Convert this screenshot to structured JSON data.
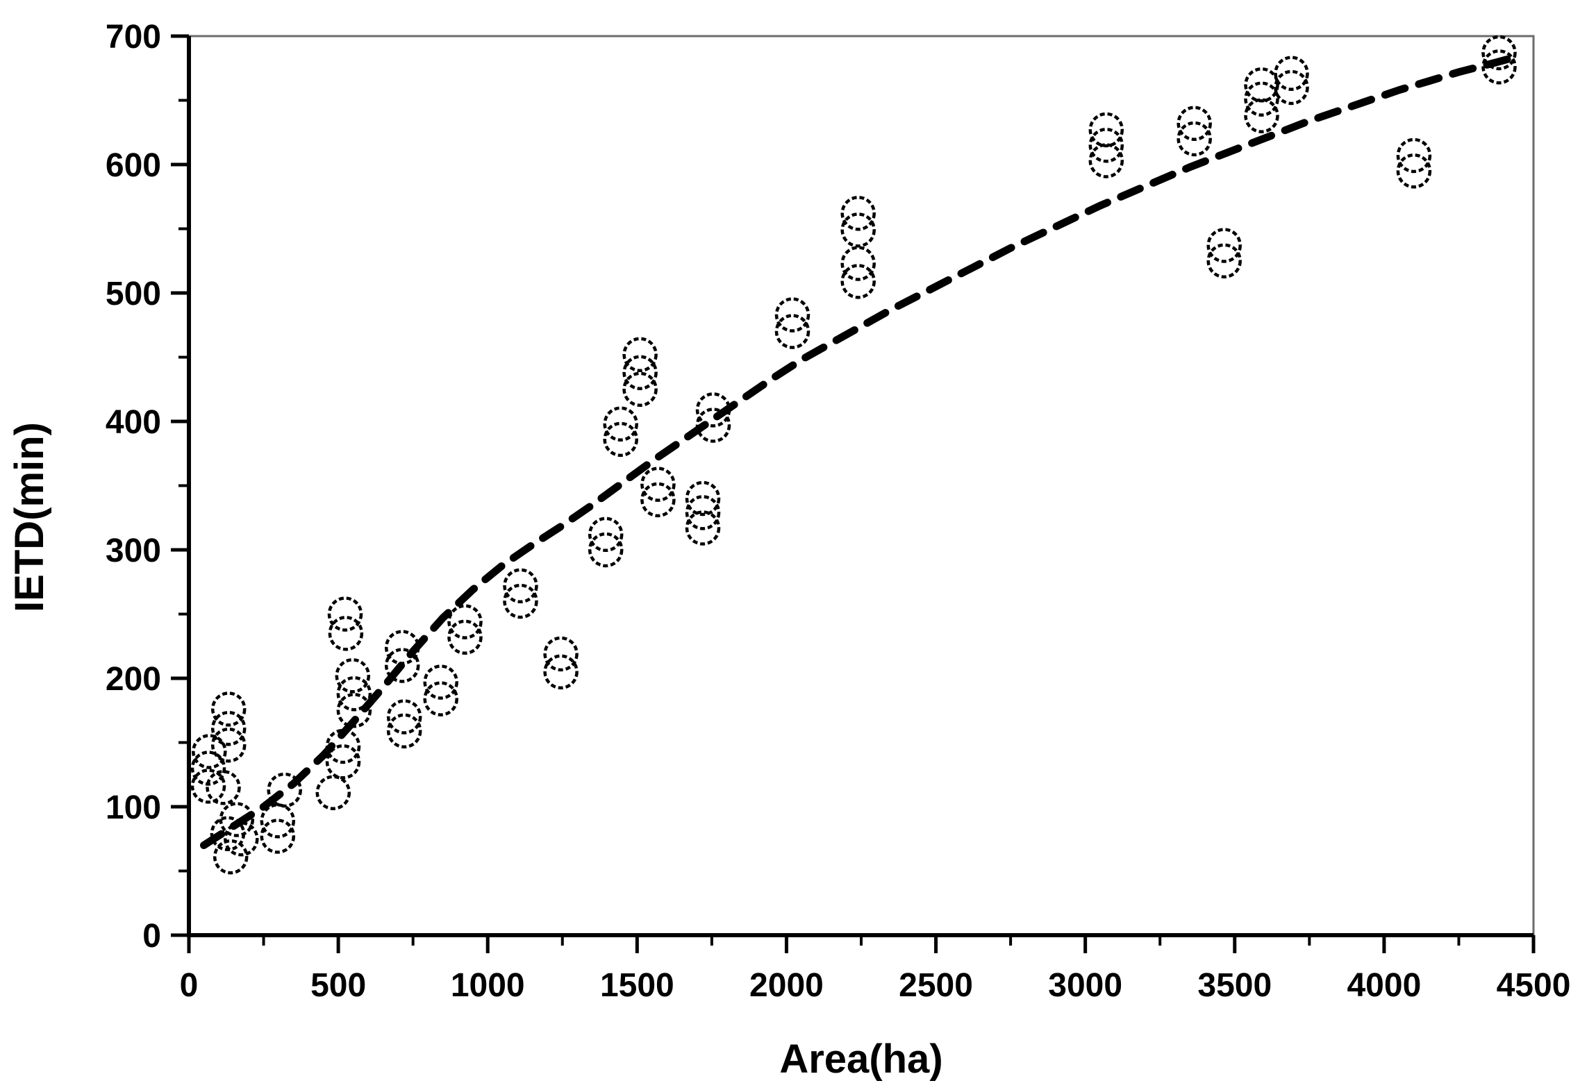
{
  "chart_data": {
    "type": "scatter",
    "title": "",
    "xlabel": "Area(ha)",
    "ylabel": "IETD(min)",
    "xlim": [
      0,
      4500
    ],
    "ylim": [
      0,
      700
    ],
    "x_major_ticks": [
      0,
      500,
      1000,
      1500,
      2000,
      2500,
      3000,
      3500,
      4000,
      4500
    ],
    "x_minor_tick_step": 250,
    "y_major_ticks": [
      0,
      100,
      200,
      300,
      400,
      500,
      600,
      700
    ],
    "y_minor_tick_step": 50,
    "grid": false,
    "legend": false,
    "marker_style": {
      "shape": "open-circle",
      "color": "#000000",
      "radius_px": 23,
      "stroke_width_px": 4.5,
      "dash_pattern": "7 4"
    },
    "trend_line": {
      "style": "dashed",
      "color": "#000000",
      "stroke_width_px": 11,
      "dash_pattern": "30 21",
      "points": [
        [
          50,
          70
        ],
        [
          150,
          85
        ],
        [
          250,
          100
        ],
        [
          350,
          118
        ],
        [
          450,
          140
        ],
        [
          550,
          166
        ],
        [
          650,
          193
        ],
        [
          750,
          221
        ],
        [
          850,
          247
        ],
        [
          950,
          269
        ],
        [
          1050,
          288
        ],
        [
          1150,
          304
        ],
        [
          1250,
          319
        ],
        [
          1350,
          335
        ],
        [
          1450,
          352
        ],
        [
          1550,
          369
        ],
        [
          1650,
          385
        ],
        [
          1750,
          401
        ],
        [
          1850,
          417
        ],
        [
          1950,
          433
        ],
        [
          2050,
          448
        ],
        [
          2150,
          461
        ],
        [
          2250,
          474
        ],
        [
          2350,
          487
        ],
        [
          2450,
          499
        ],
        [
          2550,
          511
        ],
        [
          2650,
          523
        ],
        [
          2750,
          535
        ],
        [
          2850,
          546
        ],
        [
          2950,
          557
        ],
        [
          3050,
          568
        ],
        [
          3150,
          578
        ],
        [
          3250,
          588
        ],
        [
          3350,
          598
        ],
        [
          3450,
          607
        ],
        [
          3550,
          616
        ],
        [
          3650,
          625
        ],
        [
          3750,
          634
        ],
        [
          3850,
          642
        ],
        [
          3950,
          650
        ],
        [
          4050,
          658
        ],
        [
          4150,
          665
        ],
        [
          4250,
          672
        ],
        [
          4350,
          678
        ],
        [
          4430,
          683
        ]
      ]
    },
    "points": [
      [
        65,
        130
      ],
      [
        65,
        116
      ],
      [
        68,
        143
      ],
      [
        115,
        115
      ],
      [
        130,
        79
      ],
      [
        133,
        176
      ],
      [
        133,
        161
      ],
      [
        133,
        148
      ],
      [
        140,
        61
      ],
      [
        160,
        90
      ],
      [
        175,
        75
      ],
      [
        297,
        89
      ],
      [
        297,
        77
      ],
      [
        320,
        113
      ],
      [
        483,
        111
      ],
      [
        516,
        147
      ],
      [
        516,
        135
      ],
      [
        523,
        250
      ],
      [
        525,
        235
      ],
      [
        548,
        202
      ],
      [
        553,
        188
      ],
      [
        553,
        175
      ],
      [
        714,
        224
      ],
      [
        714,
        210
      ],
      [
        721,
        170
      ],
      [
        721,
        159
      ],
      [
        843,
        197
      ],
      [
        843,
        184
      ],
      [
        924,
        244
      ],
      [
        924,
        232
      ],
      [
        1110,
        272
      ],
      [
        1110,
        260
      ],
      [
        1245,
        219
      ],
      [
        1245,
        205
      ],
      [
        1395,
        312
      ],
      [
        1395,
        300
      ],
      [
        1445,
        398
      ],
      [
        1445,
        386
      ],
      [
        1510,
        452
      ],
      [
        1510,
        438
      ],
      [
        1510,
        425
      ],
      [
        1570,
        351
      ],
      [
        1570,
        339
      ],
      [
        1720,
        340
      ],
      [
        1720,
        329
      ],
      [
        1720,
        317
      ],
      [
        1755,
        409
      ],
      [
        1755,
        397
      ],
      [
        2020,
        483
      ],
      [
        2020,
        470
      ],
      [
        2240,
        562
      ],
      [
        2240,
        549
      ],
      [
        2240,
        523
      ],
      [
        2240,
        509
      ],
      [
        3070,
        627
      ],
      [
        3070,
        615
      ],
      [
        3070,
        603
      ],
      [
        3365,
        632
      ],
      [
        3365,
        620
      ],
      [
        3465,
        537
      ],
      [
        3465,
        525
      ],
      [
        3590,
        662
      ],
      [
        3590,
        651
      ],
      [
        3590,
        638
      ],
      [
        3690,
        671
      ],
      [
        3690,
        660
      ],
      [
        4100,
        607
      ],
      [
        4100,
        595
      ],
      [
        4385,
        687
      ],
      [
        4385,
        676
      ]
    ]
  },
  "frame": {
    "background": "#ffffff",
    "axis_color": "#000000",
    "frame_color": "#6b6b6b",
    "text_color": "#000000"
  }
}
